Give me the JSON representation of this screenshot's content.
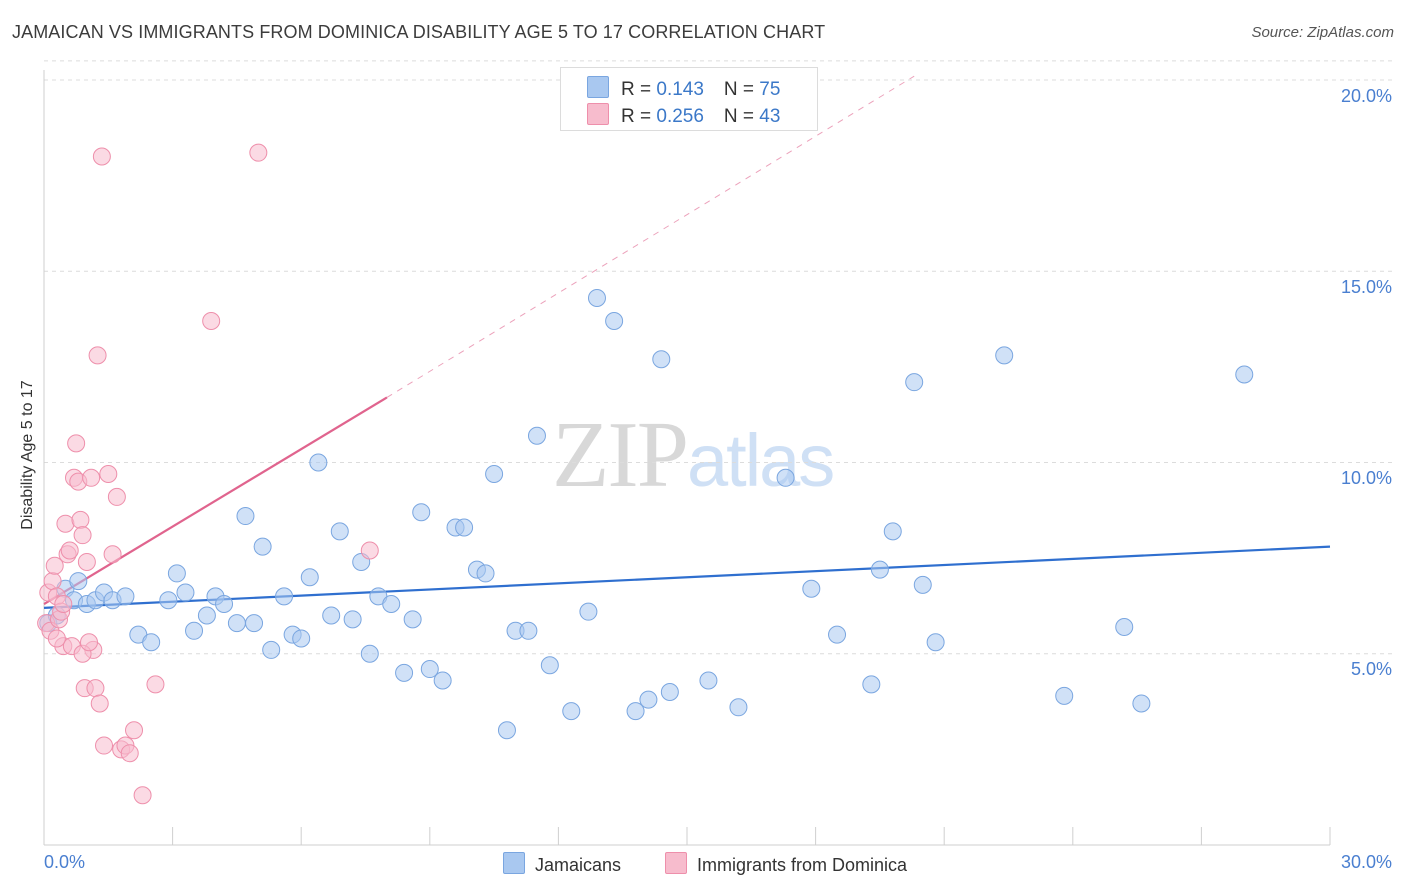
{
  "title": "JAMAICAN VS IMMIGRANTS FROM DOMINICA DISABILITY AGE 5 TO 17 CORRELATION CHART",
  "source": "Source: ZipAtlas.com",
  "watermark": {
    "zip": "ZIP",
    "atlas": "atlas"
  },
  "legend": {
    "row1": {
      "r_label": "R = ",
      "r_value": "0.143",
      "n_label": "N = ",
      "n_value": "75"
    },
    "row2": {
      "r_label": "R = ",
      "r_value": "0.256",
      "n_label": "N = ",
      "n_value": "43"
    }
  },
  "bottom_legend": {
    "series1": "Jamaicans",
    "series2": "Immigrants from Dominica"
  },
  "colors": {
    "blue_fill": "#a9c8f0",
    "blue_stroke": "#7aa6e0",
    "blue_line": "#2f6fcf",
    "pink_fill": "#f7bccd",
    "pink_stroke": "#ee8fab",
    "pink_line": "#e0648e"
  },
  "chart_data": {
    "type": "scatter",
    "title": "JAMAICAN VS IMMIGRANTS FROM DOMINICA DISABILITY AGE 5 TO 17 CORRELATION CHART",
    "ylabel": "Disability Age 5 to 17",
    "xlabel": "",
    "xlim": [
      0,
      30
    ],
    "ylim": [
      0,
      20.5
    ],
    "x_tick_labels": {
      "min": "0.0%",
      "max": "30.0%"
    },
    "y_ticks": [
      {
        "value": 5,
        "label": "5.0%"
      },
      {
        "value": 10,
        "label": "10.0%"
      },
      {
        "value": 15,
        "label": "15.0%"
      },
      {
        "value": 20,
        "label": "20.0%"
      }
    ],
    "grid": "horizontal dashed",
    "series": [
      {
        "name": "Jamaicans",
        "R": 0.143,
        "N": 75,
        "trend": {
          "x": [
            0,
            30
          ],
          "y": [
            6.2,
            7.8
          ]
        },
        "points": [
          [
            0.1,
            5.8
          ],
          [
            0.3,
            6.0
          ],
          [
            0.5,
            6.7
          ],
          [
            0.7,
            6.4
          ],
          [
            0.8,
            6.9
          ],
          [
            1.0,
            6.3
          ],
          [
            1.2,
            6.4
          ],
          [
            1.4,
            6.6
          ],
          [
            1.6,
            6.4
          ],
          [
            1.9,
            6.5
          ],
          [
            2.2,
            5.5
          ],
          [
            2.5,
            5.3
          ],
          [
            2.9,
            6.4
          ],
          [
            3.1,
            7.1
          ],
          [
            3.3,
            6.6
          ],
          [
            3.5,
            5.6
          ],
          [
            3.8,
            6.0
          ],
          [
            4.0,
            6.5
          ],
          [
            4.2,
            6.3
          ],
          [
            4.5,
            5.8
          ],
          [
            4.7,
            8.6
          ],
          [
            4.9,
            5.8
          ],
          [
            5.1,
            7.8
          ],
          [
            5.3,
            5.1
          ],
          [
            5.6,
            6.5
          ],
          [
            5.8,
            5.5
          ],
          [
            6.0,
            5.4
          ],
          [
            6.2,
            7.0
          ],
          [
            6.4,
            10.0
          ],
          [
            6.7,
            6.0
          ],
          [
            6.9,
            8.2
          ],
          [
            7.2,
            5.9
          ],
          [
            7.4,
            7.4
          ],
          [
            7.6,
            5.0
          ],
          [
            7.8,
            6.5
          ],
          [
            8.1,
            6.3
          ],
          [
            8.4,
            4.5
          ],
          [
            8.6,
            5.9
          ],
          [
            8.8,
            8.7
          ],
          [
            9.0,
            4.6
          ],
          [
            9.3,
            4.3
          ],
          [
            9.6,
            8.3
          ],
          [
            9.8,
            8.3
          ],
          [
            10.1,
            7.2
          ],
          [
            10.3,
            7.1
          ],
          [
            10.5,
            9.7
          ],
          [
            10.8,
            3.0
          ],
          [
            11.0,
            5.6
          ],
          [
            11.3,
            5.6
          ],
          [
            11.5,
            10.7
          ],
          [
            11.8,
            4.7
          ],
          [
            12.3,
            3.5
          ],
          [
            12.7,
            6.1
          ],
          [
            12.9,
            14.3
          ],
          [
            13.3,
            13.7
          ],
          [
            13.8,
            3.5
          ],
          [
            14.1,
            3.8
          ],
          [
            14.4,
            12.7
          ],
          [
            14.6,
            4.0
          ],
          [
            15.5,
            4.3
          ],
          [
            16.2,
            3.6
          ],
          [
            17.3,
            9.6
          ],
          [
            17.9,
            6.7
          ],
          [
            18.5,
            5.5
          ],
          [
            19.3,
            4.2
          ],
          [
            19.5,
            7.2
          ],
          [
            19.8,
            8.2
          ],
          [
            20.3,
            12.1
          ],
          [
            20.5,
            6.8
          ],
          [
            20.8,
            5.3
          ],
          [
            22.4,
            12.8
          ],
          [
            23.8,
            3.9
          ],
          [
            25.2,
            5.7
          ],
          [
            25.6,
            3.7
          ],
          [
            28.0,
            12.3
          ]
        ]
      },
      {
        "name": "Immigrants from Dominica",
        "R": 0.256,
        "N": 43,
        "trend": {
          "x": [
            0,
            8
          ],
          "y": [
            6.3,
            11.7
          ]
        },
        "trend_ext": {
          "x": [
            8,
            20.3
          ],
          "y": [
            11.7,
            20.1
          ]
        },
        "points": [
          [
            0.05,
            5.8
          ],
          [
            0.1,
            6.6
          ],
          [
            0.15,
            5.6
          ],
          [
            0.2,
            6.9
          ],
          [
            0.25,
            7.3
          ],
          [
            0.3,
            6.5
          ],
          [
            0.35,
            5.9
          ],
          [
            0.4,
            6.1
          ],
          [
            0.45,
            5.2
          ],
          [
            0.5,
            8.4
          ],
          [
            0.55,
            7.6
          ],
          [
            0.6,
            7.7
          ],
          [
            0.7,
            9.6
          ],
          [
            0.75,
            10.5
          ],
          [
            0.8,
            9.5
          ],
          [
            0.85,
            8.5
          ],
          [
            0.9,
            8.1
          ],
          [
            0.95,
            4.1
          ],
          [
            1.0,
            7.4
          ],
          [
            1.1,
            9.6
          ],
          [
            1.15,
            5.1
          ],
          [
            1.2,
            4.1
          ],
          [
            1.3,
            3.7
          ],
          [
            1.4,
            2.6
          ],
          [
            1.5,
            9.7
          ],
          [
            1.6,
            7.6
          ],
          [
            1.7,
            9.1
          ],
          [
            1.8,
            2.5
          ],
          [
            1.9,
            2.6
          ],
          [
            2.0,
            2.4
          ],
          [
            2.1,
            3.0
          ],
          [
            2.3,
            1.3
          ],
          [
            2.6,
            4.2
          ],
          [
            3.9,
            13.7
          ],
          [
            5.0,
            18.1
          ],
          [
            7.6,
            7.7
          ],
          [
            1.25,
            12.8
          ],
          [
            1.35,
            18.0
          ],
          [
            0.65,
            5.2
          ],
          [
            0.9,
            5.0
          ],
          [
            1.05,
            5.3
          ],
          [
            0.3,
            5.4
          ],
          [
            0.45,
            6.3
          ]
        ]
      }
    ]
  }
}
